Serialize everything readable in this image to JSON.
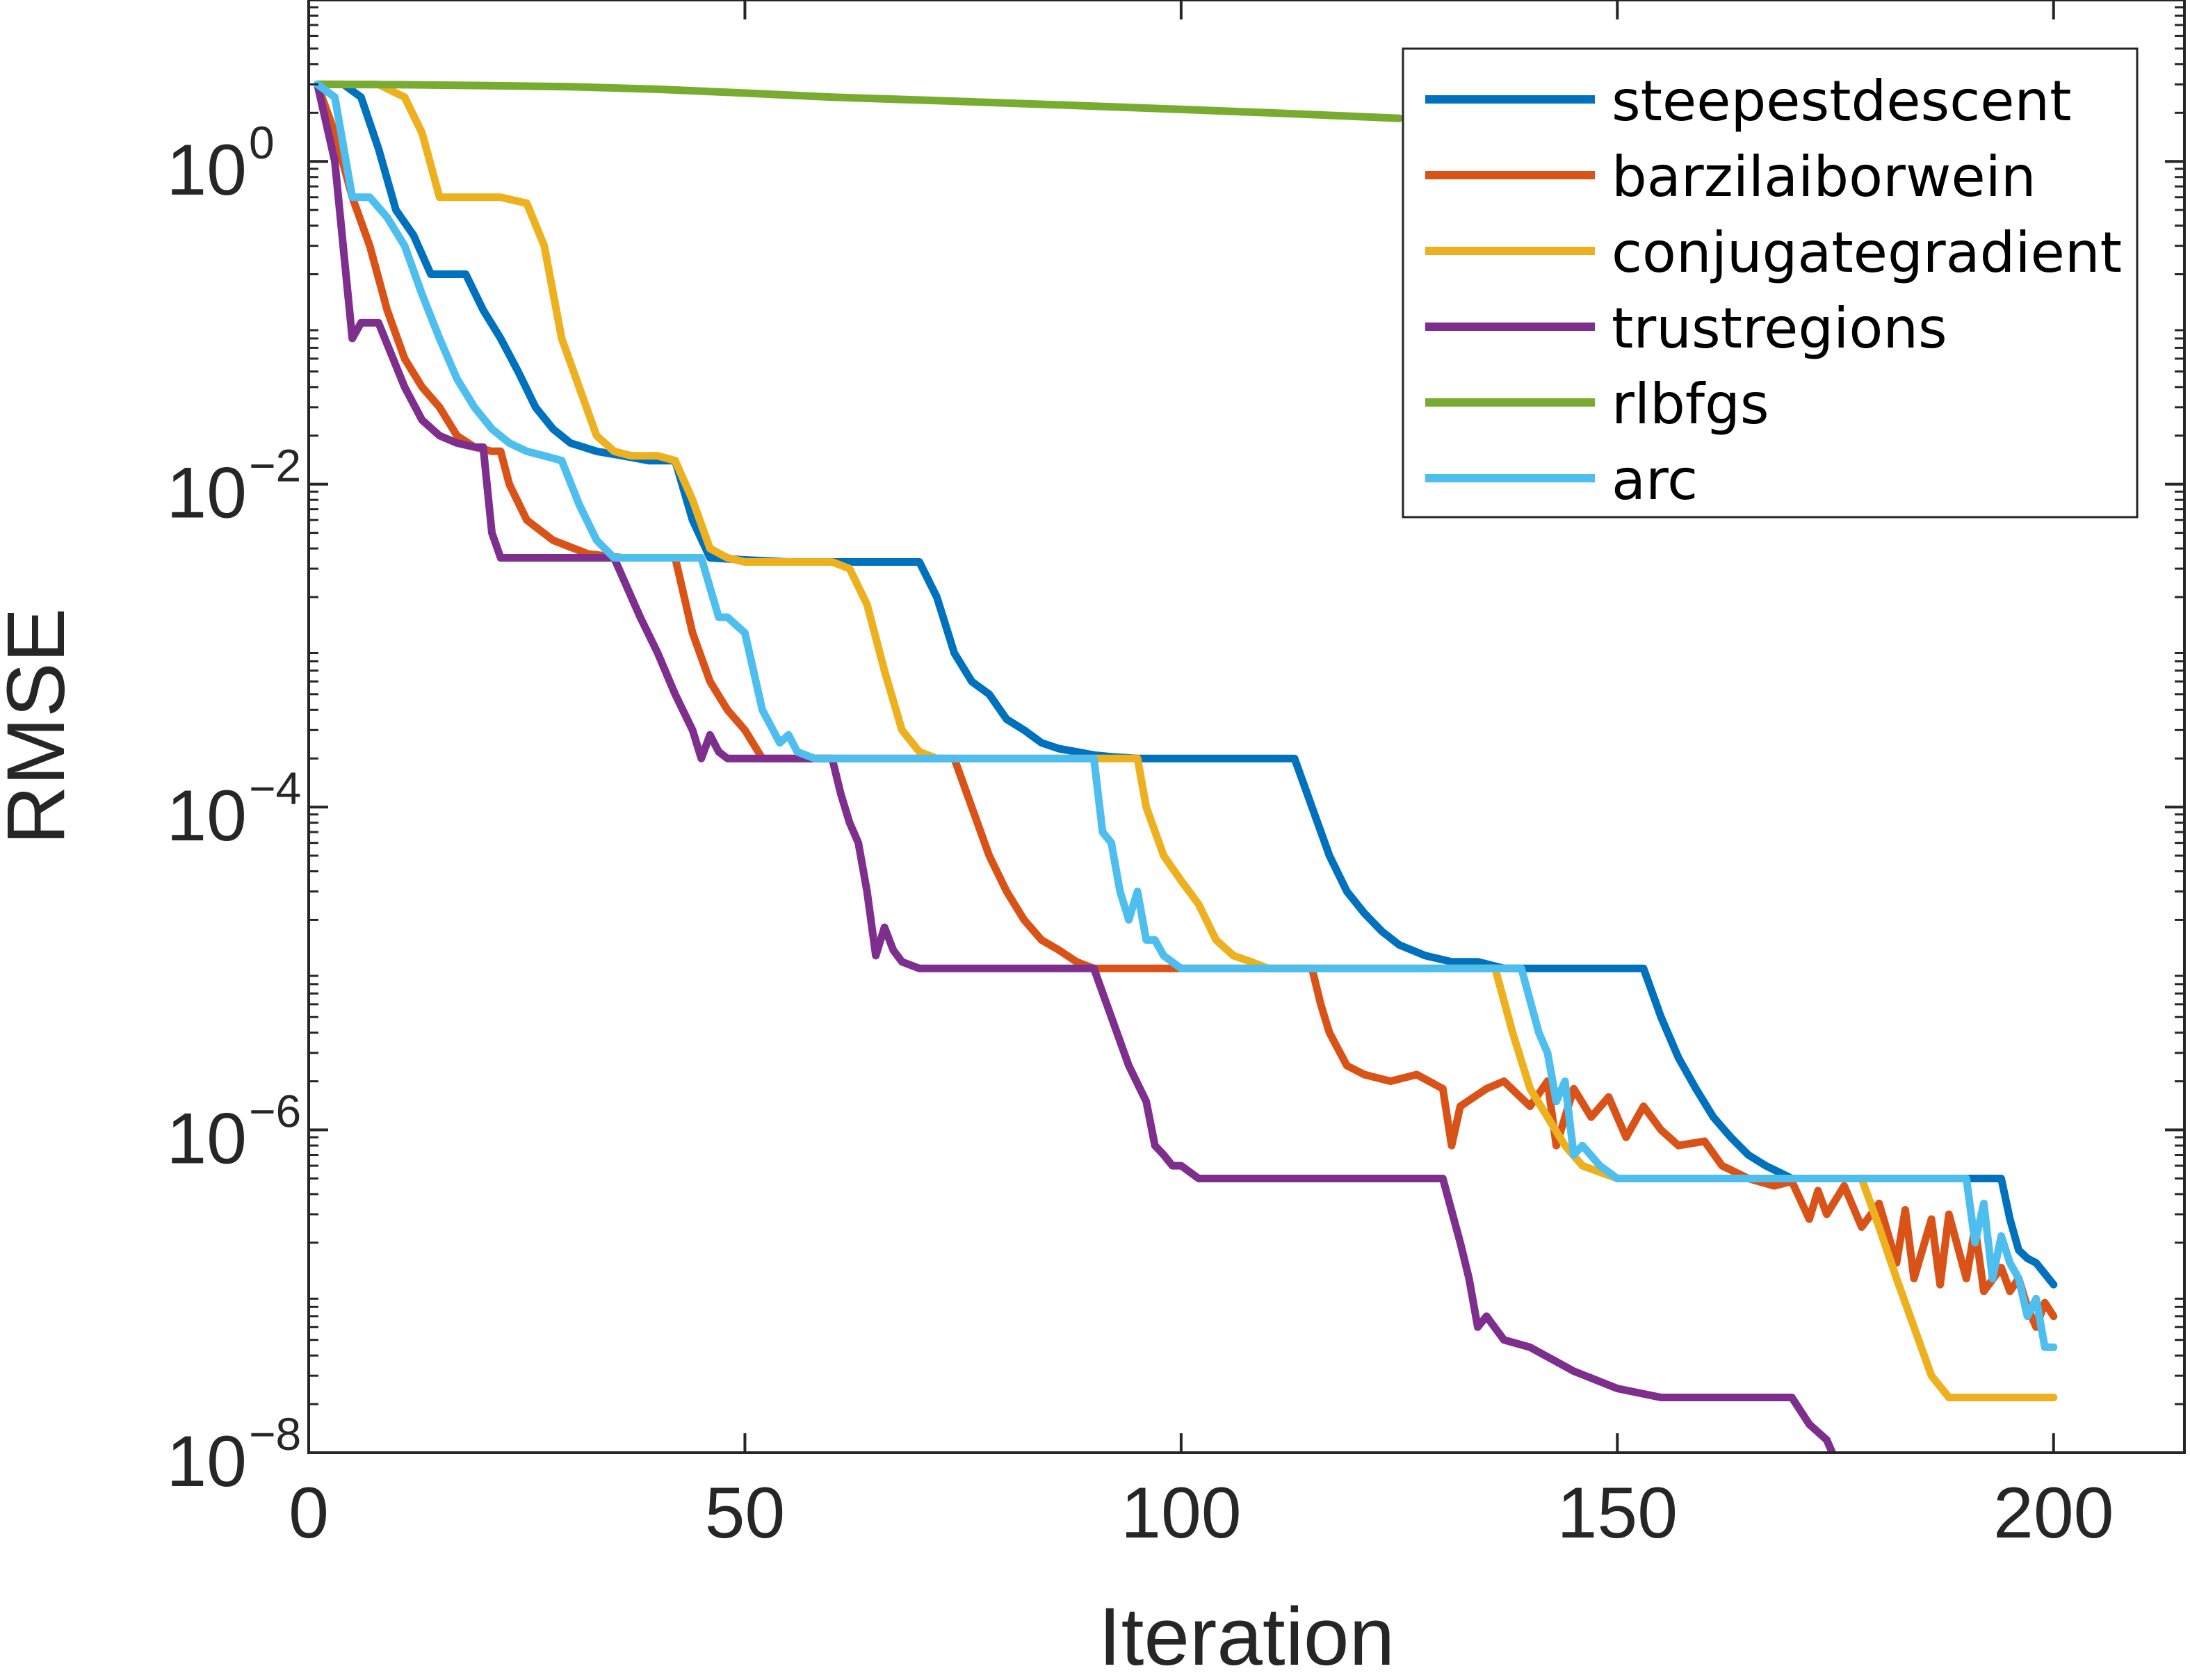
{
  "chart_data": {
    "type": "line",
    "title": "",
    "xlabel": "Iteration",
    "ylabel": "RMSE",
    "xlim": [
      0,
      215
    ],
    "ylim": [
      1e-08,
      10
    ],
    "yscale": "log",
    "grid": false,
    "legend_position": "top-right",
    "x_ticks": [
      0,
      50,
      100,
      150,
      200
    ],
    "x_tick_labels": [
      "0",
      "50",
      "100",
      "150",
      "200"
    ],
    "y_ticks": [
      1e-08,
      1e-06,
      0.0001,
      0.01,
      1
    ],
    "y_tick_labels": [
      {
        "base": "10",
        "exp": "−8"
      },
      {
        "base": "10",
        "exp": "−6"
      },
      {
        "base": "10",
        "exp": "−4"
      },
      {
        "base": "10",
        "exp": "−2"
      },
      {
        "base": "10",
        "exp": "0"
      }
    ],
    "series": [
      {
        "name": "steepestdescent",
        "color": "#0072BD",
        "x": [
          1,
          4,
          6,
          8,
          10,
          12,
          14,
          16,
          18,
          20,
          22,
          24,
          26,
          28,
          30,
          33,
          36,
          39,
          42,
          44,
          46,
          50,
          55,
          60,
          65,
          70,
          72,
          74,
          76,
          78,
          80,
          82,
          84,
          86,
          88,
          90,
          92,
          95,
          100,
          105,
          110,
          113,
          115,
          117,
          119,
          121,
          123,
          125,
          128,
          131,
          134,
          137,
          140,
          145,
          150,
          153,
          155,
          157,
          159,
          161,
          163,
          165,
          167,
          170,
          175,
          180,
          185,
          190,
          194,
          195,
          196,
          197,
          198,
          200
        ],
        "y": [
          3.0,
          3.0,
          2.5,
          1.2,
          0.5,
          0.35,
          0.2,
          0.2,
          0.2,
          0.12,
          0.08,
          0.05,
          0.03,
          0.022,
          0.018,
          0.016,
          0.015,
          0.014,
          0.014,
          0.006,
          0.0035,
          0.0034,
          0.0033,
          0.0033,
          0.0033,
          0.0033,
          0.002,
          0.0009,
          0.0006,
          0.0005,
          0.00035,
          0.0003,
          0.00025,
          0.00023,
          0.00022,
          0.00021,
          0.000205,
          0.0002,
          0.0002,
          0.0002,
          0.0002,
          0.0002,
          0.0001,
          5e-05,
          3e-05,
          2.2e-05,
          1.7e-05,
          1.4e-05,
          1.2e-05,
          1.1e-05,
          1.1e-05,
          1e-05,
          1e-05,
          1e-05,
          1e-05,
          1e-05,
          5e-06,
          2.8e-06,
          1.8e-06,
          1.2e-06,
          9e-07,
          7e-07,
          6e-07,
          5e-07,
          5e-07,
          5e-07,
          5e-07,
          5e-07,
          5e-07,
          2.8e-07,
          1.8e-07,
          1.6e-07,
          1.5e-07,
          1.1e-07
        ]
      },
      {
        "name": "barzilaiborwein",
        "color": "#D95319",
        "x": [
          1,
          3,
          5,
          7,
          9,
          11,
          13,
          15,
          17,
          19,
          21,
          22,
          23,
          25,
          28,
          32,
          36,
          40,
          42,
          44,
          46,
          48,
          50,
          52,
          55,
          60,
          65,
          70,
          74,
          76,
          78,
          80,
          82,
          84,
          86,
          88,
          90,
          95,
          100,
          105,
          110,
          115,
          116,
          117,
          119,
          121,
          124,
          127,
          130,
          131,
          132,
          135,
          137,
          140,
          142,
          143,
          145,
          147,
          149,
          151,
          153,
          155,
          157,
          160,
          162,
          165,
          168,
          170,
          172,
          173,
          174,
          176,
          178,
          180,
          182,
          183,
          184,
          186,
          187,
          188,
          190,
          191,
          192,
          194,
          195,
          196,
          197,
          198,
          199,
          200
        ],
        "y": [
          3.0,
          1.5,
          0.6,
          0.3,
          0.12,
          0.06,
          0.04,
          0.03,
          0.02,
          0.017,
          0.016,
          0.016,
          0.01,
          0.006,
          0.0045,
          0.0037,
          0.0035,
          0.0035,
          0.0035,
          0.0012,
          0.0006,
          0.0004,
          0.0003,
          0.0002,
          0.0002,
          0.0002,
          0.0002,
          0.0002,
          0.0002,
          0.0001,
          5e-05,
          3e-05,
          2e-05,
          1.5e-05,
          1.3e-05,
          1.1e-05,
          1e-05,
          1e-05,
          1e-05,
          1e-05,
          1e-05,
          1e-05,
          6e-06,
          4e-06,
          2.5e-06,
          2.2e-06,
          2e-06,
          2.2e-06,
          1.8e-06,
          8e-07,
          1.4e-06,
          1.8e-06,
          2e-06,
          1.4e-06,
          2e-06,
          8e-07,
          1.8e-06,
          1.2e-06,
          1.6e-06,
          9e-07,
          1.4e-06,
          1e-06,
          8e-07,
          8.5e-07,
          6e-07,
          5e-07,
          4.5e-07,
          4.8e-07,
          2.8e-07,
          4.2e-07,
          3e-07,
          4.5e-07,
          2.5e-07,
          3.5e-07,
          1.5e-07,
          3.2e-07,
          1.2e-07,
          2.8e-07,
          1.1e-07,
          3e-07,
          1.2e-07,
          2.5e-07,
          1e-07,
          1.4e-07,
          1e-07,
          1.2e-07,
          8e-08,
          6e-08,
          8.5e-08,
          7e-08
        ]
      },
      {
        "name": "conjugategradient",
        "color": "#EDB120",
        "x": [
          1,
          8,
          11,
          13,
          15,
          17,
          19,
          22,
          25,
          27,
          29,
          31,
          33,
          35,
          37,
          40,
          42,
          44,
          46,
          48,
          50,
          55,
          60,
          62,
          64,
          66,
          68,
          70,
          72,
          75,
          80,
          85,
          90,
          95,
          96,
          98,
          100,
          102,
          104,
          106,
          108,
          110,
          112,
          115,
          120,
          125,
          130,
          136,
          138,
          140,
          142,
          144,
          146,
          150,
          155,
          160,
          165,
          170,
          175,
          178,
          180,
          182,
          184,
          186,
          188,
          190,
          195,
          200
        ],
        "y": [
          3.0,
          3.0,
          2.5,
          1.5,
          0.6,
          0.6,
          0.6,
          0.6,
          0.55,
          0.3,
          0.08,
          0.04,
          0.02,
          0.016,
          0.015,
          0.015,
          0.014,
          0.008,
          0.004,
          0.0035,
          0.0033,
          0.0033,
          0.0033,
          0.003,
          0.0018,
          0.0007,
          0.0003,
          0.00022,
          0.0002,
          0.0002,
          0.0002,
          0.0002,
          0.0002,
          0.0002,
          0.0001,
          5e-05,
          3.5e-05,
          2.5e-05,
          1.5e-05,
          1.2e-05,
          1.1e-05,
          1e-05,
          1e-05,
          1e-05,
          1e-05,
          1e-05,
          1e-05,
          1e-05,
          4e-06,
          1.8e-06,
          1.2e-06,
          8e-07,
          6e-07,
          5e-07,
          5e-07,
          5e-07,
          5e-07,
          5e-07,
          5e-07,
          5e-07,
          2.5e-07,
          1.2e-07,
          6e-08,
          3e-08,
          2.2e-08,
          2.2e-08,
          2.2e-08,
          2.2e-08
        ]
      },
      {
        "name": "trustregions",
        "color": "#7E2F8E",
        "x": [
          1,
          3,
          5,
          6,
          8,
          11,
          13,
          15,
          17,
          19,
          20,
          21,
          22,
          23,
          25,
          30,
          35,
          38,
          40,
          42,
          44,
          45,
          46,
          47,
          48,
          50,
          55,
          60,
          61,
          62,
          63,
          64,
          65,
          66,
          67,
          68,
          70,
          72,
          75,
          80,
          85,
          90,
          92,
          94,
          96,
          97,
          98,
          99,
          100,
          102,
          105,
          110,
          120,
          125,
          130,
          132,
          133,
          134,
          135,
          137,
          140,
          145,
          150,
          155,
          160,
          165,
          170,
          172,
          174,
          175
        ],
        "y": [
          3.0,
          1.0,
          0.08,
          0.1,
          0.1,
          0.04,
          0.025,
          0.02,
          0.018,
          0.017,
          0.017,
          0.005,
          0.0035,
          0.0035,
          0.0035,
          0.0035,
          0.0035,
          0.0015,
          0.0009,
          0.0005,
          0.0003,
          0.0002,
          0.00028,
          0.00022,
          0.0002,
          0.0002,
          0.0002,
          0.0002,
          0.00012,
          8e-05,
          6e-05,
          3e-05,
          1.2e-05,
          1.8e-05,
          1.3e-05,
          1.1e-05,
          1e-05,
          1e-05,
          1e-05,
          1e-05,
          1e-05,
          1e-05,
          5e-06,
          2.5e-06,
          1.5e-06,
          8e-07,
          7e-07,
          6e-07,
          6e-07,
          5e-07,
          5e-07,
          5e-07,
          5e-07,
          5e-07,
          5e-07,
          2e-07,
          1.2e-07,
          6e-08,
          7e-08,
          5e-08,
          4.5e-08,
          3.2e-08,
          2.5e-08,
          2.2e-08,
          2.2e-08,
          2.2e-08,
          2.2e-08,
          1.5e-08,
          1.2e-08,
          9e-09
        ]
      },
      {
        "name": "rlbfgs",
        "color": "#77AC30",
        "x": [
          1,
          10,
          20,
          30,
          40,
          50,
          60,
          70,
          80,
          90,
          100,
          110,
          120,
          125
        ],
        "y": [
          3.0,
          2.99,
          2.95,
          2.9,
          2.8,
          2.65,
          2.5,
          2.4,
          2.3,
          2.2,
          2.1,
          2.0,
          1.9,
          1.85
        ]
      },
      {
        "name": "arc",
        "color": "#4DBEEE",
        "x": [
          1,
          3,
          5,
          7,
          9,
          11,
          13,
          15,
          17,
          19,
          21,
          23,
          25,
          27,
          29,
          31,
          33,
          35,
          37,
          40,
          42,
          45,
          47,
          48,
          50,
          52,
          54,
          55,
          56,
          58,
          60,
          62,
          65,
          70,
          75,
          80,
          85,
          90,
          91,
          92,
          93,
          94,
          95,
          96,
          97,
          98,
          100,
          105,
          110,
          120,
          130,
          139,
          141,
          142,
          143,
          144,
          145,
          146,
          148,
          150,
          155,
          160,
          165,
          170,
          175,
          180,
          185,
          190,
          191,
          192,
          193,
          194,
          195,
          196,
          197,
          198,
          199,
          200
        ],
        "y": [
          3.0,
          2.5,
          0.6,
          0.6,
          0.45,
          0.3,
          0.15,
          0.08,
          0.045,
          0.03,
          0.022,
          0.018,
          0.016,
          0.015,
          0.014,
          0.0075,
          0.0045,
          0.0035,
          0.0035,
          0.0035,
          0.0035,
          0.0035,
          0.0015,
          0.0015,
          0.0012,
          0.0004,
          0.00025,
          0.00028,
          0.00022,
          0.0002,
          0.0002,
          0.0002,
          0.0002,
          0.0002,
          0.0002,
          0.0002,
          0.0002,
          0.0002,
          7e-05,
          6e-05,
          3e-05,
          2e-05,
          3e-05,
          1.5e-05,
          1.5e-05,
          1.2e-05,
          1e-05,
          1e-05,
          1e-05,
          1e-05,
          1e-05,
          1e-05,
          4e-06,
          3e-06,
          1.5e-06,
          2e-06,
          7e-07,
          8e-07,
          6e-07,
          5e-07,
          5e-07,
          5e-07,
          5e-07,
          5e-07,
          5e-07,
          5e-07,
          5e-07,
          5e-07,
          2e-07,
          3.5e-07,
          1.2e-07,
          2.2e-07,
          1.5e-07,
          1.2e-07,
          7e-08,
          9e-08,
          4.5e-08,
          4.5e-08
        ]
      }
    ]
  }
}
